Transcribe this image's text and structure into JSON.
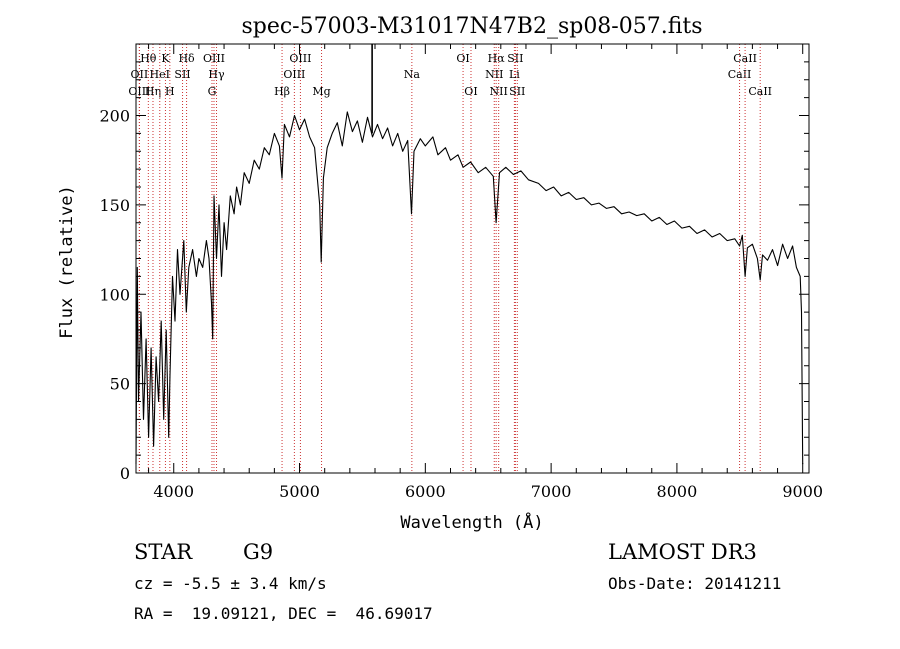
{
  "chart_data": {
    "type": "line",
    "title": "spec-57003-M31017N47B2_sp08-057.fits",
    "xlabel": "Wavelength (Å)",
    "ylabel": "Flux (relative)",
    "xlim": [
      3700,
      9050
    ],
    "ylim": [
      0,
      240
    ],
    "xticks": [
      4000,
      5000,
      6000,
      7000,
      8000,
      9000
    ],
    "yticks": [
      0,
      50,
      100,
      150,
      200
    ],
    "xtick_labels": [
      "4000",
      "5000",
      "6000",
      "7000",
      "8000",
      "9000"
    ],
    "ytick_labels": [
      "0",
      "50",
      "100",
      "150",
      "200"
    ],
    "line_color": "#000000",
    "marker_color": "#cc3333",
    "series": [
      {
        "name": "flux",
        "points": [
          [
            3700,
            5
          ],
          [
            3710,
            115
          ],
          [
            3720,
            40
          ],
          [
            3740,
            90
          ],
          [
            3760,
            30
          ],
          [
            3780,
            75
          ],
          [
            3800,
            20
          ],
          [
            3820,
            70
          ],
          [
            3840,
            15
          ],
          [
            3860,
            65
          ],
          [
            3880,
            40
          ],
          [
            3900,
            85
          ],
          [
            3920,
            30
          ],
          [
            3940,
            80
          ],
          [
            3960,
            20
          ],
          [
            3970,
            55
          ],
          [
            3990,
            110
          ],
          [
            4010,
            85
          ],
          [
            4030,
            125
          ],
          [
            4050,
            100
          ],
          [
            4080,
            130
          ],
          [
            4100,
            90
          ],
          [
            4120,
            115
          ],
          [
            4150,
            125
          ],
          [
            4180,
            110
          ],
          [
            4200,
            120
          ],
          [
            4230,
            115
          ],
          [
            4260,
            130
          ],
          [
            4280,
            120
          ],
          [
            4300,
            95
          ],
          [
            4310,
            75
          ],
          [
            4320,
            155
          ],
          [
            4340,
            120
          ],
          [
            4360,
            150
          ],
          [
            4380,
            110
          ],
          [
            4400,
            140
          ],
          [
            4420,
            125
          ],
          [
            4450,
            155
          ],
          [
            4480,
            145
          ],
          [
            4500,
            160
          ],
          [
            4530,
            150
          ],
          [
            4560,
            168
          ],
          [
            4600,
            162
          ],
          [
            4640,
            175
          ],
          [
            4680,
            170
          ],
          [
            4720,
            182
          ],
          [
            4760,
            178
          ],
          [
            4800,
            190
          ],
          [
            4840,
            183
          ],
          [
            4861,
            165
          ],
          [
            4880,
            195
          ],
          [
            4920,
            188
          ],
          [
            4960,
            200
          ],
          [
            5000,
            192
          ],
          [
            5040,
            198
          ],
          [
            5080,
            188
          ],
          [
            5120,
            182
          ],
          [
            5160,
            150
          ],
          [
            5172,
            118
          ],
          [
            5190,
            165
          ],
          [
            5220,
            182
          ],
          [
            5260,
            190
          ],
          [
            5300,
            196
          ],
          [
            5340,
            183
          ],
          [
            5380,
            202
          ],
          [
            5420,
            191
          ],
          [
            5460,
            197
          ],
          [
            5500,
            185
          ],
          [
            5540,
            199
          ],
          [
            5580,
            188
          ],
          [
            5620,
            195
          ],
          [
            5660,
            187
          ],
          [
            5700,
            193
          ],
          [
            5740,
            183
          ],
          [
            5780,
            190
          ],
          [
            5820,
            180
          ],
          [
            5860,
            186
          ],
          [
            5890,
            145
          ],
          [
            5910,
            180
          ],
          [
            5960,
            187
          ],
          [
            6000,
            183
          ],
          [
            6060,
            188
          ],
          [
            6100,
            178
          ],
          [
            6160,
            182
          ],
          [
            6200,
            175
          ],
          [
            6260,
            178
          ],
          [
            6300,
            171
          ],
          [
            6360,
            174
          ],
          [
            6420,
            168
          ],
          [
            6480,
            171
          ],
          [
            6540,
            166
          ],
          [
            6563,
            140
          ],
          [
            6590,
            168
          ],
          [
            6640,
            171
          ],
          [
            6700,
            167
          ],
          [
            6760,
            169
          ],
          [
            6820,
            164
          ],
          [
            6900,
            162
          ],
          [
            6960,
            158
          ],
          [
            7020,
            160
          ],
          [
            7080,
            155
          ],
          [
            7140,
            157
          ],
          [
            7200,
            153
          ],
          [
            7260,
            154
          ],
          [
            7320,
            150
          ],
          [
            7380,
            151
          ],
          [
            7440,
            148
          ],
          [
            7500,
            149
          ],
          [
            7560,
            145
          ],
          [
            7620,
            146
          ],
          [
            7680,
            144
          ],
          [
            7740,
            145
          ],
          [
            7800,
            141
          ],
          [
            7860,
            143
          ],
          [
            7920,
            139
          ],
          [
            7980,
            141
          ],
          [
            8040,
            137
          ],
          [
            8100,
            138
          ],
          [
            8160,
            134
          ],
          [
            8220,
            136
          ],
          [
            8280,
            132
          ],
          [
            8340,
            134
          ],
          [
            8400,
            130
          ],
          [
            8460,
            131
          ],
          [
            8498,
            127
          ],
          [
            8520,
            133
          ],
          [
            8542,
            110
          ],
          [
            8560,
            126
          ],
          [
            8600,
            128
          ],
          [
            8640,
            120
          ],
          [
            8662,
            108
          ],
          [
            8680,
            122
          ],
          [
            8720,
            119
          ],
          [
            8760,
            125
          ],
          [
            8800,
            116
          ],
          [
            8840,
            128
          ],
          [
            8880,
            120
          ],
          [
            8920,
            127
          ],
          [
            8950,
            115
          ],
          [
            8980,
            110
          ],
          [
            8990,
            90
          ],
          [
            9000,
            5
          ]
        ]
      }
    ],
    "spike": {
      "x": 5577,
      "y_top": 244,
      "y_bottom": 190
    },
    "line_markers": [
      {
        "label": "Hθ",
        "x": 3798,
        "row": 1
      },
      {
        "label": "OII",
        "x": 3727,
        "row": 2
      },
      {
        "label": "OIII",
        "x": 3727,
        "row": 3
      },
      {
        "label": "Hη",
        "x": 3835,
        "row": 3
      },
      {
        "label": "HeI",
        "x": 3889,
        "row": 2
      },
      {
        "label": "K",
        "x": 3934,
        "row": 1
      },
      {
        "label": "H",
        "x": 3969,
        "row": 3
      },
      {
        "label": "SII",
        "x": 4070,
        "row": 2
      },
      {
        "label": "Hδ",
        "x": 4102,
        "row": 1
      },
      {
        "label": "OIII",
        "x": 4320,
        "row": 1
      },
      {
        "label": "Hγ",
        "x": 4340,
        "row": 2
      },
      {
        "label": "G",
        "x": 4304,
        "row": 3
      },
      {
        "label": "Hβ",
        "x": 4861,
        "row": 3
      },
      {
        "label": "OIII",
        "x": 5007,
        "row": 1
      },
      {
        "label": "OIII",
        "x": 4959,
        "row": 2
      },
      {
        "label": "Mg",
        "x": 5175,
        "row": 3
      },
      {
        "label": "Na",
        "x": 5893,
        "row": 2
      },
      {
        "label": "OI",
        "x": 6300,
        "row": 1
      },
      {
        "label": "OI",
        "x": 6363,
        "row": 3
      },
      {
        "label": "Hα",
        "x": 6563,
        "row": 1
      },
      {
        "label": "NII",
        "x": 6548,
        "row": 2
      },
      {
        "label": "NII",
        "x": 6583,
        "row": 3
      },
      {
        "label": "SII",
        "x": 6716,
        "row": 1
      },
      {
        "label": "Li",
        "x": 6708,
        "row": 2
      },
      {
        "label": "SII",
        "x": 6731,
        "row": 3
      },
      {
        "label": "CaII",
        "x": 8498,
        "row": 2
      },
      {
        "label": "CaII",
        "x": 8542,
        "row": 1
      },
      {
        "label": "CaII",
        "x": 8662,
        "row": 3
      }
    ]
  },
  "info": {
    "object_class": "STAR",
    "subclass": "G9",
    "survey": "LAMOST DR3",
    "cz": "cz = -5.5 ± 3.4 km/s",
    "obs_date": "Obs-Date: 20141211",
    "coords": "RA =  19.09121, DEC =  46.69017"
  }
}
